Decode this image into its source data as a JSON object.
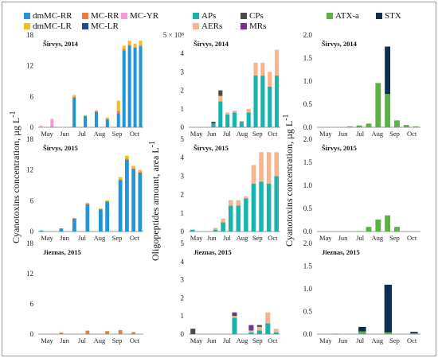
{
  "chart_data": [
    {
      "panel": "MC-A",
      "type": "bar",
      "stacked": true,
      "title": "Širvys, 2014",
      "ylim": [
        0,
        18
      ],
      "yticks": [
        0,
        6,
        12,
        18
      ],
      "ytick_labels": [
        "0",
        "6",
        "12",
        "18"
      ],
      "xtick_labels": [
        "May",
        "Jun",
        "Jul",
        "Aug",
        "Sep",
        "Oct"
      ],
      "series": [
        {
          "key": "dmMC-RR",
          "values": [
            0,
            0,
            0.1,
            0,
            0,
            0,
            5.8,
            0,
            2.2,
            0,
            3.0,
            0,
            1.6,
            0,
            2.7,
            15.0,
            15.9,
            15.5,
            15.8
          ]
        },
        {
          "key": "MC-RR",
          "values": [
            0,
            0,
            0,
            0,
            0,
            0,
            0.1,
            0,
            0,
            0,
            0.1,
            0,
            0,
            0,
            0.5,
            0.3,
            0.2,
            0.1,
            0.2
          ]
        },
        {
          "key": "MC-YR",
          "values": [
            0.3,
            0,
            1.5,
            0,
            0,
            0,
            0,
            0,
            0,
            0,
            0,
            0,
            0,
            0,
            0,
            0,
            0,
            0,
            0
          ]
        },
        {
          "key": "dmMC-LR",
          "values": [
            0,
            0,
            0,
            0,
            0,
            0,
            0.4,
            0,
            0.2,
            0,
            0.2,
            0,
            0.3,
            0,
            2.0,
            0.6,
            0.8,
            0.7,
            0.9
          ]
        },
        {
          "key": "MC-LR",
          "values": [
            0,
            0,
            0,
            0,
            0,
            0,
            0,
            0,
            0,
            0,
            0,
            0,
            0,
            0,
            0,
            0,
            0,
            0,
            0
          ]
        }
      ]
    },
    {
      "panel": "MC-B",
      "type": "bar",
      "stacked": true,
      "title": "Širvys, 2015",
      "ylim": [
        0,
        18
      ],
      "yticks": [
        0,
        6,
        12,
        18
      ],
      "ytick_labels": [
        "0",
        "6",
        "12",
        "18"
      ],
      "xtick_labels": [
        "May",
        "Jun",
        "Jul",
        "Aug",
        "Sep",
        "Oct"
      ],
      "series": [
        {
          "key": "dmMC-RR",
          "values": [
            0.2,
            0,
            0,
            0.6,
            0,
            2.5,
            0,
            5.3,
            0,
            4.3,
            5.8,
            0,
            10.0,
            14.0,
            12.2,
            11.5
          ]
        },
        {
          "key": "MC-RR",
          "values": [
            0,
            0,
            0,
            0,
            0,
            0.1,
            0,
            0.1,
            0,
            0.1,
            0.1,
            0,
            0.2,
            0.2,
            0.1,
            0.1
          ]
        },
        {
          "key": "MC-YR",
          "values": [
            0,
            0,
            0,
            0,
            0,
            0,
            0,
            0,
            0,
            0,
            0,
            0,
            0,
            0,
            0,
            0
          ]
        },
        {
          "key": "dmMC-LR",
          "values": [
            0,
            0,
            0,
            0,
            0,
            0,
            0,
            0.2,
            0,
            0.1,
            0.2,
            0,
            0.4,
            0.6,
            0.5,
            0.4
          ]
        },
        {
          "key": "MC-LR",
          "values": [
            0,
            0,
            0,
            0,
            0,
            0,
            0,
            0,
            0,
            0,
            0,
            0,
            0,
            0,
            0,
            0
          ]
        }
      ]
    },
    {
      "panel": "MC-C",
      "type": "bar",
      "stacked": true,
      "title": "Jieznas, 2015",
      "ylim": [
        0,
        18
      ],
      "yticks": [
        0,
        6,
        12,
        18
      ],
      "ytick_labels": [
        "0",
        "6",
        "12",
        "18"
      ],
      "xtick_labels": [
        "May",
        "Jun",
        "Jul",
        "Aug",
        "Sep",
        "Oct"
      ],
      "series": [
        {
          "key": "dmMC-RR",
          "values": [
            0,
            0,
            0,
            0.1,
            0,
            0,
            0,
            0.1,
            0,
            0,
            0.1,
            0,
            0.1,
            0,
            0.1,
            0
          ]
        },
        {
          "key": "MC-RR",
          "values": [
            0,
            0,
            0,
            0.2,
            0,
            0,
            0,
            0.6,
            0,
            0,
            0.5,
            0,
            0.7,
            0,
            0.3,
            0
          ]
        },
        {
          "key": "MC-YR",
          "values": [
            0,
            0,
            0,
            0,
            0,
            0,
            0,
            0,
            0,
            0,
            0,
            0,
            0,
            0,
            0,
            0
          ]
        },
        {
          "key": "dmMC-LR",
          "values": [
            0,
            0,
            0,
            0,
            0,
            0,
            0,
            0,
            0,
            0,
            0,
            0,
            0,
            0,
            0,
            0
          ]
        },
        {
          "key": "MC-LR",
          "values": [
            0,
            0,
            0,
            0,
            0,
            0,
            0,
            0,
            0,
            0,
            0,
            0,
            0,
            0,
            0,
            0
          ]
        }
      ]
    },
    {
      "panel": "OP-A",
      "type": "bar",
      "stacked": true,
      "title": "Širvys, 2014",
      "ylim": [
        0,
        5
      ],
      "yticks": [
        0,
        1,
        2,
        3,
        4,
        5
      ],
      "ytick_labels": [
        "0",
        "1",
        "2",
        "3",
        "4",
        "5 × 10⁸"
      ],
      "xtick_labels": [
        "May",
        "Jun",
        "Jul",
        "Aug",
        "Sep",
        "Oct"
      ],
      "series": [
        {
          "key": "APs",
          "values": [
            0,
            0,
            0,
            0.2,
            1.4,
            0.7,
            0.8,
            0.3,
            0.8,
            2.8,
            2.8,
            2.2,
            2.8
          ]
        },
        {
          "key": "AERs",
          "values": [
            0,
            0,
            0,
            0,
            0.3,
            0.1,
            0.1,
            0.05,
            0.2,
            0.7,
            0.7,
            0.8,
            1.4
          ]
        },
        {
          "key": "CPs",
          "values": [
            0,
            0,
            0,
            0.1,
            0.3,
            0,
            0,
            0,
            0,
            0,
            0,
            0,
            0
          ]
        },
        {
          "key": "MRs",
          "values": [
            0,
            0,
            0,
            0,
            0,
            0,
            0,
            0,
            0,
            0,
            0,
            0,
            0
          ]
        }
      ]
    },
    {
      "panel": "OP-B",
      "type": "bar",
      "stacked": true,
      "title": "Širvys, 2015",
      "ylim": [
        0,
        5
      ],
      "yticks": [
        0,
        1,
        2,
        3,
        4,
        5
      ],
      "ytick_labels": [
        "0",
        "1",
        "2",
        "3",
        "4",
        "5"
      ],
      "xtick_labels": [
        "May",
        "Jun",
        "Jul",
        "Aug",
        "Sep",
        "Oct"
      ],
      "series": [
        {
          "key": "APs",
          "values": [
            0.1,
            0,
            0,
            0.1,
            0.5,
            1.4,
            1.4,
            1.8,
            2.6,
            2.7,
            2.6,
            3.0
          ]
        },
        {
          "key": "AERs",
          "values": [
            0,
            0,
            0,
            0.1,
            0.2,
            0.3,
            0.3,
            0.1,
            1.0,
            1.6,
            1.7,
            1.3
          ]
        },
        {
          "key": "CPs",
          "values": [
            0,
            0,
            0,
            0,
            0,
            0,
            0,
            0,
            0,
            0,
            0,
            0
          ]
        },
        {
          "key": "MRs",
          "values": [
            0,
            0,
            0,
            0,
            0,
            0,
            0,
            0,
            0,
            0,
            0,
            0
          ]
        }
      ]
    },
    {
      "panel": "OP-C",
      "type": "bar",
      "stacked": true,
      "title": "Jieznas, 2015",
      "ylim": [
        0,
        5
      ],
      "yticks": [
        0,
        1,
        2,
        3,
        4,
        5
      ],
      "ytick_labels": [
        "0",
        "1",
        "2",
        "3",
        "4",
        "5"
      ],
      "xtick_labels": [
        "May",
        "Jun",
        "Jul",
        "Aug",
        "Sep",
        "Oct"
      ],
      "series": [
        {
          "key": "APs",
          "values": [
            0,
            0,
            0,
            0,
            0,
            0.9,
            0,
            0.1,
            0.2,
            0.6,
            0.1
          ]
        },
        {
          "key": "AERs",
          "values": [
            0,
            0,
            0,
            0,
            0,
            0.1,
            0,
            0.1,
            0.2,
            0.6,
            0.2
          ]
        },
        {
          "key": "CPs",
          "values": [
            0.3,
            0,
            0,
            0,
            0,
            0.1,
            0,
            0.1,
            0.1,
            0,
            0
          ]
        },
        {
          "key": "MRs",
          "values": [
            0,
            0,
            0,
            0,
            0,
            0.1,
            0,
            0.2,
            0,
            0,
            0
          ]
        }
      ]
    },
    {
      "panel": "STX-A",
      "type": "bar",
      "stacked": true,
      "title": "Širvys, 2014",
      "ylim": [
        0,
        2.0
      ],
      "yticks": [
        0,
        0.5,
        1.0,
        1.5,
        2.0
      ],
      "ytick_labels": [
        "0.0",
        "0.5",
        "1.0",
        "1.5",
        "2.0"
      ],
      "xtick_labels": [
        "May",
        "Jun",
        "Jul",
        "Aug",
        "Sep",
        "Oct"
      ],
      "series": [
        {
          "key": "ATX-a",
          "values": [
            0,
            0,
            0,
            0.02,
            0.04,
            0.08,
            0.96,
            0.72,
            0.15,
            0.05,
            0.02
          ]
        },
        {
          "key": "STX",
          "values": [
            0,
            0,
            0,
            0,
            0,
            0,
            0,
            1.03,
            0,
            0,
            0
          ]
        }
      ]
    },
    {
      "panel": "STX-B",
      "type": "bar",
      "stacked": true,
      "title": "Širvys, 2015",
      "ylim": [
        0,
        2.0
      ],
      "yticks": [
        0,
        0.5,
        1.0,
        1.5,
        2.0
      ],
      "ytick_labels": [
        "0.0",
        "0.5",
        "1.0",
        "1.5",
        "2.0"
      ],
      "xtick_labels": [
        "May",
        "Jun",
        "Jul",
        "Aug",
        "Sep",
        "Oct"
      ],
      "series": [
        {
          "key": "ATX-a",
          "values": [
            0,
            0,
            0,
            0,
            0.01,
            0.1,
            0.26,
            0.35,
            0.1,
            0,
            0
          ]
        },
        {
          "key": "STX",
          "values": [
            0,
            0,
            0,
            0,
            0,
            0,
            0,
            0,
            0,
            0,
            0
          ]
        }
      ]
    },
    {
      "panel": "STX-C",
      "type": "bar",
      "stacked": true,
      "title": "Jieznas, 2015",
      "ylim": [
        0,
        2.0
      ],
      "yticks": [
        0,
        0.5,
        1.0,
        1.5,
        2.0
      ],
      "ytick_labels": [
        "0.0",
        "0.5",
        "1.0",
        "1.5",
        "2.0"
      ],
      "xtick_labels": [
        "May",
        "Jun",
        "Jul",
        "Aug",
        "Sep",
        "Oct"
      ],
      "series": [
        {
          "key": "ATX-a",
          "values": [
            0,
            0.01,
            0,
            0.06,
            0,
            0.04,
            0,
            0.02
          ]
        },
        {
          "key": "STX",
          "values": [
            0,
            0,
            0,
            0.1,
            0,
            1.05,
            0,
            0.03
          ]
        }
      ]
    }
  ],
  "y_axis_labels": {
    "left": "Cyanotoxins concentration, µg L",
    "middle": "Oligopeptides amount, area L",
    "right": "Cyanotoxins concentration, µg L",
    "left_sup": "-1",
    "middle_sup": "-1",
    "right_sup": "-1"
  },
  "legends": {
    "mc": [
      {
        "key": "dmMC-RR",
        "label": "dmMC-RR",
        "color": "#1f97d6"
      },
      {
        "key": "MC-RR",
        "label": "MC-RR",
        "color": "#ee7d3a"
      },
      {
        "key": "MC-YR",
        "label": "MC-YR",
        "color": "#f59ad3"
      },
      {
        "key": "dmMC-LR",
        "label": "dmMC-LR",
        "color": "#f7bd18"
      },
      {
        "key": "MC-LR",
        "label": "MC-LR",
        "color": "#1f4c91"
      }
    ],
    "op": [
      {
        "key": "APs",
        "label": "APs",
        "color": "#1ab3ac"
      },
      {
        "key": "CPs",
        "label": "CPs",
        "color": "#4b4b4b"
      },
      {
        "key": "AERs",
        "label": "AERs",
        "color": "#f8b48c"
      },
      {
        "key": "MRs",
        "label": "MRs",
        "color": "#7c2a9a"
      }
    ],
    "stx": [
      {
        "key": "ATX-a",
        "label": "ATX-a",
        "color": "#59b343"
      },
      {
        "key": "STX",
        "label": "STX",
        "color": "#0d2e52"
      }
    ]
  }
}
